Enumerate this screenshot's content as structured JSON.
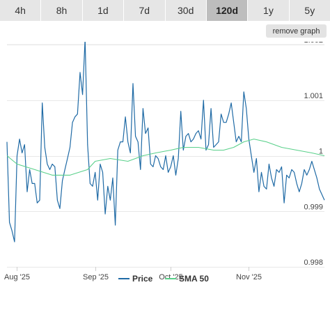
{
  "toolbar": {
    "ranges": [
      "4h",
      "8h",
      "1d",
      "7d",
      "30d",
      "120d",
      "1y",
      "5y"
    ],
    "active_range": "120d",
    "remove_label": "remove graph"
  },
  "colors": {
    "price": "#1f6aa5",
    "sma": "#59d08a",
    "grid": "#e8e8e8",
    "active_tab": "#bdbdbd",
    "tab": "#e6e6e6"
  },
  "chart_data": {
    "type": "line",
    "title": "",
    "xlabel": "",
    "ylabel": "",
    "ylim": [
      0.998,
      1.002
    ],
    "yticks": [
      "1.002",
      "1.001",
      "1",
      "0.999",
      "0.998"
    ],
    "ytick_values": [
      1.002,
      1.001,
      1.0,
      0.999,
      0.998
    ],
    "x_range": [
      "2025-07-28",
      "2025-12-01"
    ],
    "xticks": [
      {
        "label": "Aug '25",
        "date": "2025-08-01"
      },
      {
        "label": "Sep '25",
        "date": "2025-09-01"
      },
      {
        "label": "Oct '25",
        "date": "2025-10-01"
      },
      {
        "label": "Nov '25",
        "date": "2025-11-01"
      }
    ],
    "grid": true,
    "legend_position": "bottom",
    "series": [
      {
        "name": "Price",
        "points": [
          [
            "2025-07-28",
            1.00025
          ],
          [
            "2025-07-29",
            0.9988
          ],
          [
            "2025-07-30",
            0.99865
          ],
          [
            "2025-07-31",
            0.99845
          ],
          [
            "2025-08-01",
            1.0
          ],
          [
            "2025-08-02",
            1.0003
          ],
          [
            "2025-08-03",
            1.00005
          ],
          [
            "2025-08-04",
            1.0002
          ],
          [
            "2025-08-05",
            0.99935
          ],
          [
            "2025-08-06",
            0.99975
          ],
          [
            "2025-08-07",
            0.9995
          ],
          [
            "2025-08-08",
            0.9995
          ],
          [
            "2025-08-09",
            0.99915
          ],
          [
            "2025-08-10",
            0.9992
          ],
          [
            "2025-08-11",
            1.00095
          ],
          [
            "2025-08-12",
            1.00015
          ],
          [
            "2025-08-13",
            0.99985
          ],
          [
            "2025-08-14",
            0.99975
          ],
          [
            "2025-08-15",
            0.99985
          ],
          [
            "2025-08-16",
            0.9998
          ],
          [
            "2025-08-17",
            0.9992
          ],
          [
            "2025-08-18",
            0.99905
          ],
          [
            "2025-08-19",
            0.99955
          ],
          [
            "2025-08-20",
            0.99975
          ],
          [
            "2025-08-21",
            0.99995
          ],
          [
            "2025-08-22",
            1.00015
          ],
          [
            "2025-08-23",
            1.0006
          ],
          [
            "2025-08-24",
            1.0007
          ],
          [
            "2025-08-25",
            1.00075
          ],
          [
            "2025-08-26",
            1.0015
          ],
          [
            "2025-08-27",
            1.0011
          ],
          [
            "2025-08-28",
            1.0021
          ],
          [
            "2025-08-29",
            1.0002
          ],
          [
            "2025-08-30",
            0.9995
          ],
          [
            "2025-08-31",
            0.99945
          ],
          [
            "2025-09-01",
            0.9997
          ],
          [
            "2025-09-02",
            0.9992
          ],
          [
            "2025-09-03",
            0.99985
          ],
          [
            "2025-09-04",
            0.9997
          ],
          [
            "2025-09-05",
            0.99895
          ],
          [
            "2025-09-06",
            0.99945
          ],
          [
            "2025-09-07",
            0.9992
          ],
          [
            "2025-09-08",
            0.9996
          ],
          [
            "2025-09-09",
            0.99875
          ],
          [
            "2025-09-10",
            1.0001
          ],
          [
            "2025-09-11",
            1.00025
          ],
          [
            "2025-09-12",
            1.00025
          ],
          [
            "2025-09-13",
            1.0007
          ],
          [
            "2025-09-14",
            1.00025
          ],
          [
            "2025-09-15",
            1.00005
          ],
          [
            "2025-09-16",
            1.0013
          ],
          [
            "2025-09-17",
            1.00035
          ],
          [
            "2025-09-18",
            1.00025
          ],
          [
            "2025-09-19",
            0.99975
          ],
          [
            "2025-09-20",
            1.00085
          ],
          [
            "2025-09-21",
            1.0004
          ],
          [
            "2025-09-22",
            1.0005
          ],
          [
            "2025-09-23",
            0.99985
          ],
          [
            "2025-09-24",
            0.9998
          ],
          [
            "2025-09-25",
            1.0
          ],
          [
            "2025-09-26",
            0.99995
          ],
          [
            "2025-09-27",
            0.9998
          ],
          [
            "2025-09-28",
            0.99975
          ],
          [
            "2025-09-29",
            1.0
          ],
          [
            "2025-09-30",
            0.9997
          ],
          [
            "2025-10-01",
            0.9998
          ],
          [
            "2025-10-02",
            1.0
          ],
          [
            "2025-10-03",
            0.99965
          ],
          [
            "2025-10-04",
            0.99995
          ],
          [
            "2025-10-05",
            1.0008
          ],
          [
            "2025-10-06",
            1.0001
          ],
          [
            "2025-10-07",
            1.00035
          ],
          [
            "2025-10-08",
            1.0004
          ],
          [
            "2025-10-09",
            1.00025
          ],
          [
            "2025-10-10",
            1.0003
          ],
          [
            "2025-10-11",
            1.0004
          ],
          [
            "2025-10-12",
            1.00045
          ],
          [
            "2025-10-13",
            1.0003
          ],
          [
            "2025-10-14",
            1.001
          ],
          [
            "2025-10-15",
            1.0001
          ],
          [
            "2025-10-16",
            1.0002
          ],
          [
            "2025-10-17",
            1.00085
          ],
          [
            "2025-10-18",
            1.00015
          ],
          [
            "2025-10-19",
            1.0002
          ],
          [
            "2025-10-20",
            1.00025
          ],
          [
            "2025-10-21",
            1.00075
          ],
          [
            "2025-10-22",
            1.0006
          ],
          [
            "2025-10-23",
            1.0006
          ],
          [
            "2025-10-24",
            1.00075
          ],
          [
            "2025-10-25",
            1.00095
          ],
          [
            "2025-10-26",
            1.0006
          ],
          [
            "2025-10-27",
            1.00025
          ],
          [
            "2025-10-28",
            1.00035
          ],
          [
            "2025-10-29",
            1.00025
          ],
          [
            "2025-10-30",
            1.00115
          ],
          [
            "2025-10-31",
            1.00085
          ],
          [
            "2025-11-01",
            1.0003
          ],
          [
            "2025-11-02",
            1.0
          ],
          [
            "2025-11-03",
            0.9997
          ],
          [
            "2025-11-04",
            0.99995
          ],
          [
            "2025-11-05",
            0.99935
          ],
          [
            "2025-11-06",
            0.9997
          ],
          [
            "2025-11-07",
            0.99945
          ],
          [
            "2025-11-08",
            0.9994
          ],
          [
            "2025-11-09",
            0.99985
          ],
          [
            "2025-11-10",
            0.9996
          ],
          [
            "2025-11-11",
            0.99945
          ],
          [
            "2025-11-12",
            0.99975
          ],
          [
            "2025-11-13",
            0.9997
          ],
          [
            "2025-11-14",
            0.9998
          ],
          [
            "2025-11-15",
            0.99915
          ],
          [
            "2025-11-16",
            0.99965
          ],
          [
            "2025-11-17",
            0.9996
          ],
          [
            "2025-11-18",
            0.99975
          ],
          [
            "2025-11-19",
            0.9997
          ],
          [
            "2025-11-20",
            0.9995
          ],
          [
            "2025-11-21",
            0.99935
          ],
          [
            "2025-11-22",
            0.9995
          ],
          [
            "2025-11-23",
            0.99975
          ],
          [
            "2025-11-24",
            0.99965
          ],
          [
            "2025-11-25",
            0.99975
          ],
          [
            "2025-11-26",
            0.9999
          ],
          [
            "2025-11-27",
            0.99975
          ],
          [
            "2025-11-28",
            0.9996
          ],
          [
            "2025-11-29",
            0.9994
          ],
          [
            "2025-11-30",
            0.9993
          ],
          [
            "2025-12-01",
            0.9992
          ]
        ]
      },
      {
        "name": "SMA 50",
        "points": [
          [
            "2025-07-28",
            1.0
          ],
          [
            "2025-08-01",
            0.99985
          ],
          [
            "2025-08-08",
            0.99975
          ],
          [
            "2025-08-15",
            0.99965
          ],
          [
            "2025-08-22",
            0.99965
          ],
          [
            "2025-08-29",
            0.99975
          ],
          [
            "2025-09-01",
            0.9999
          ],
          [
            "2025-09-07",
            0.99995
          ],
          [
            "2025-09-14",
            0.9999
          ],
          [
            "2025-09-20",
            1.0
          ],
          [
            "2025-09-25",
            1.00005
          ],
          [
            "2025-10-01",
            1.0001
          ],
          [
            "2025-10-06",
            1.00015
          ],
          [
            "2025-10-12",
            1.00015
          ],
          [
            "2025-10-18",
            1.0001
          ],
          [
            "2025-10-22",
            1.0001
          ],
          [
            "2025-10-26",
            1.00015
          ],
          [
            "2025-10-30",
            1.00025
          ],
          [
            "2025-11-03",
            1.0003
          ],
          [
            "2025-11-08",
            1.00025
          ],
          [
            "2025-11-14",
            1.00015
          ],
          [
            "2025-11-20",
            1.0001
          ],
          [
            "2025-11-26",
            1.00005
          ],
          [
            "2025-12-01",
            1.0
          ]
        ]
      }
    ]
  }
}
